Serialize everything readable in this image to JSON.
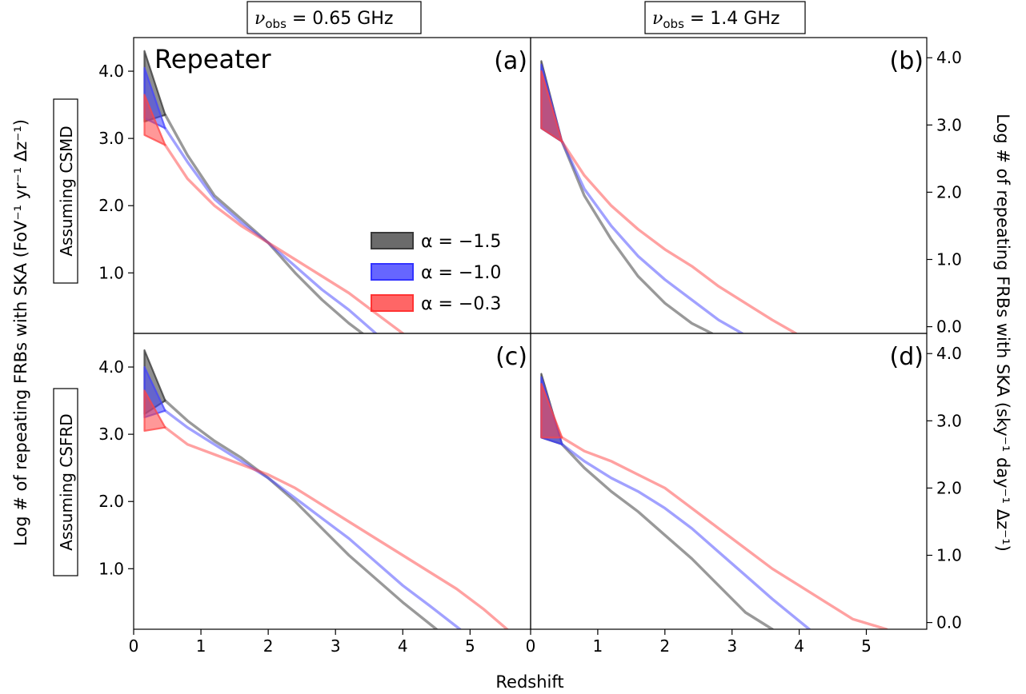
{
  "figure": {
    "xlabel": "Redshift",
    "ylabel_left": "Log # of repeating FRBs with SKA (FoV⁻¹ yr⁻¹ Δz⁻¹)",
    "ylabel_right": "Log # of repeating FRBs with SKA (sky⁻¹ day⁻¹ Δz⁻¹)",
    "col_labels": [
      {
        "nu": "ν",
        "sub": "obs",
        "value": " = 0.65 GHz"
      },
      {
        "nu": "ν",
        "sub": "obs",
        "value": " = 1.4 GHz"
      }
    ],
    "row_labels": [
      "Assuming CSMD",
      "Assuming CSFRD"
    ],
    "annotation": "Repeater",
    "legend": [
      {
        "label": "α = −1.5",
        "color": "#3a3a3a"
      },
      {
        "label": "α = −1.0",
        "color": "#3333ff"
      },
      {
        "label": "α = −0.3",
        "color": "#ff3333"
      }
    ],
    "x_ticks": [
      "0",
      "1",
      "2",
      "3",
      "4",
      "5"
    ],
    "y_ticks": [
      "1.0",
      "2.0",
      "3.0",
      "4.0"
    ],
    "right_ticks": [
      "0.0",
      "1.0",
      "2.0",
      "3.0",
      "4.0"
    ],
    "series_colors": {
      "-1.5": "#333333",
      "-1.0": "#4444ff",
      "-0.3": "#ff4444"
    }
  },
  "chart_data": [
    {
      "panel": "(a)",
      "type": "area",
      "xlim": [
        0,
        5.9
      ],
      "ylim": [
        0.1,
        4.5
      ],
      "series": [
        {
          "alpha": "-1.5",
          "band": [
            [
              0.16,
              3.25,
              4.3
            ],
            [
              0.47,
              3.35,
              3.35
            ]
          ],
          "x": [
            0.47,
            0.8,
            1.2,
            1.6,
            2.0,
            2.4,
            2.8,
            3.2,
            3.4
          ],
          "y": [
            3.35,
            2.75,
            2.15,
            1.8,
            1.45,
            1.0,
            0.6,
            0.25,
            0.1
          ]
        },
        {
          "alpha": "-1.0",
          "band": [
            [
              0.16,
              3.3,
              4.05
            ],
            [
              0.47,
              3.15,
              3.15
            ]
          ],
          "x": [
            0.47,
            0.8,
            1.2,
            1.6,
            2.0,
            2.4,
            2.8,
            3.2,
            3.6
          ],
          "y": [
            3.15,
            2.65,
            2.1,
            1.75,
            1.45,
            1.1,
            0.75,
            0.45,
            0.1
          ]
        },
        {
          "alpha": "-0.3",
          "band": [
            [
              0.16,
              3.05,
              3.65
            ],
            [
              0.47,
              2.9,
              2.9
            ]
          ],
          "x": [
            0.47,
            0.8,
            1.2,
            1.6,
            2.0,
            2.4,
            2.8,
            3.2,
            3.6,
            4.0
          ],
          "y": [
            2.9,
            2.4,
            2.0,
            1.7,
            1.45,
            1.2,
            0.95,
            0.7,
            0.4,
            0.1
          ]
        }
      ]
    },
    {
      "panel": "(b)",
      "type": "area",
      "xlim": [
        0,
        5.9
      ],
      "ylim": [
        -0.1,
        4.3
      ],
      "series": [
        {
          "alpha": "-1.5",
          "band": [
            [
              0.16,
              2.95,
              3.95
            ],
            [
              0.47,
              2.75,
              2.75
            ]
          ],
          "x": [
            0.47,
            0.8,
            1.2,
            1.6,
            2.0,
            2.4,
            2.7
          ],
          "y": [
            2.75,
            1.95,
            1.3,
            0.75,
            0.35,
            0.05,
            -0.1
          ]
        },
        {
          "alpha": "-1.0",
          "band": [
            [
              0.16,
              2.95,
              3.9
            ],
            [
              0.47,
              2.75,
              2.75
            ]
          ],
          "x": [
            0.47,
            0.8,
            1.2,
            1.6,
            2.0,
            2.4,
            2.8,
            3.15
          ],
          "y": [
            2.75,
            2.05,
            1.5,
            1.05,
            0.7,
            0.4,
            0.1,
            -0.1
          ]
        },
        {
          "alpha": "-0.3",
          "band": [
            [
              0.16,
              2.95,
              3.8
            ],
            [
              0.47,
              2.75,
              2.75
            ]
          ],
          "x": [
            0.47,
            0.8,
            1.2,
            1.6,
            2.0,
            2.4,
            2.8,
            3.2,
            3.6,
            3.95
          ],
          "y": [
            2.75,
            2.25,
            1.8,
            1.45,
            1.15,
            0.9,
            0.6,
            0.35,
            0.1,
            -0.1
          ]
        }
      ]
    },
    {
      "panel": "(c)",
      "type": "area",
      "xlim": [
        0,
        5.9
      ],
      "ylim": [
        0.1,
        4.5
      ],
      "series": [
        {
          "alpha": "-1.5",
          "band": [
            [
              0.16,
              3.3,
              4.25
            ],
            [
              0.47,
              3.5,
              3.5
            ]
          ],
          "x": [
            0.47,
            0.8,
            1.2,
            1.6,
            2.0,
            2.4,
            2.8,
            3.2,
            3.6,
            4.0,
            4.5
          ],
          "y": [
            3.5,
            3.2,
            2.9,
            2.65,
            2.35,
            2.0,
            1.6,
            1.2,
            0.85,
            0.5,
            0.1
          ]
        },
        {
          "alpha": "-1.0",
          "band": [
            [
              0.16,
              3.25,
              4.0
            ],
            [
              0.47,
              3.35,
              3.35
            ]
          ],
          "x": [
            0.47,
            0.8,
            1.2,
            1.6,
            2.0,
            2.4,
            2.8,
            3.2,
            3.6,
            4.0,
            4.4,
            4.85
          ],
          "y": [
            3.35,
            3.1,
            2.85,
            2.6,
            2.35,
            2.05,
            1.75,
            1.45,
            1.1,
            0.75,
            0.45,
            0.1
          ]
        },
        {
          "alpha": "-0.3",
          "band": [
            [
              0.16,
              3.05,
              3.65
            ],
            [
              0.47,
              3.1,
              3.1
            ]
          ],
          "x": [
            0.47,
            0.8,
            1.2,
            1.6,
            2.0,
            2.4,
            2.8,
            3.2,
            3.6,
            4.0,
            4.4,
            4.8,
            5.2,
            5.55
          ],
          "y": [
            3.1,
            2.85,
            2.7,
            2.55,
            2.4,
            2.2,
            1.95,
            1.7,
            1.45,
            1.2,
            0.95,
            0.7,
            0.4,
            0.1
          ]
        }
      ]
    },
    {
      "panel": "(d)",
      "type": "area",
      "xlim": [
        0,
        5.9
      ],
      "ylim": [
        -0.1,
        4.3
      ],
      "series": [
        {
          "alpha": "-1.5",
          "band": [
            [
              0.16,
              2.75,
              3.7
            ],
            [
              0.47,
              2.65,
              2.65
            ]
          ],
          "x": [
            0.47,
            0.8,
            1.2,
            1.6,
            2.0,
            2.4,
            2.8,
            3.2,
            3.6
          ],
          "y": [
            2.65,
            2.3,
            1.95,
            1.65,
            1.3,
            0.95,
            0.55,
            0.15,
            -0.1
          ]
        },
        {
          "alpha": "-1.0",
          "band": [
            [
              0.16,
              2.75,
              3.65
            ],
            [
              0.47,
              2.65,
              2.65
            ]
          ],
          "x": [
            0.47,
            0.8,
            1.2,
            1.6,
            2.0,
            2.4,
            2.8,
            3.2,
            3.6,
            4.15
          ],
          "y": [
            2.65,
            2.4,
            2.15,
            1.95,
            1.7,
            1.4,
            1.05,
            0.7,
            0.35,
            -0.1
          ]
        },
        {
          "alpha": "-0.3",
          "band": [
            [
              0.16,
              2.75,
              3.55
            ],
            [
              0.47,
              2.75,
              2.75
            ]
          ],
          "x": [
            0.47,
            0.8,
            1.2,
            1.6,
            2.0,
            2.4,
            2.8,
            3.2,
            3.6,
            4.0,
            4.4,
            4.8,
            5.3
          ],
          "y": [
            2.75,
            2.55,
            2.4,
            2.2,
            2.0,
            1.7,
            1.4,
            1.1,
            0.8,
            0.55,
            0.3,
            0.05,
            -0.1
          ]
        }
      ]
    }
  ]
}
